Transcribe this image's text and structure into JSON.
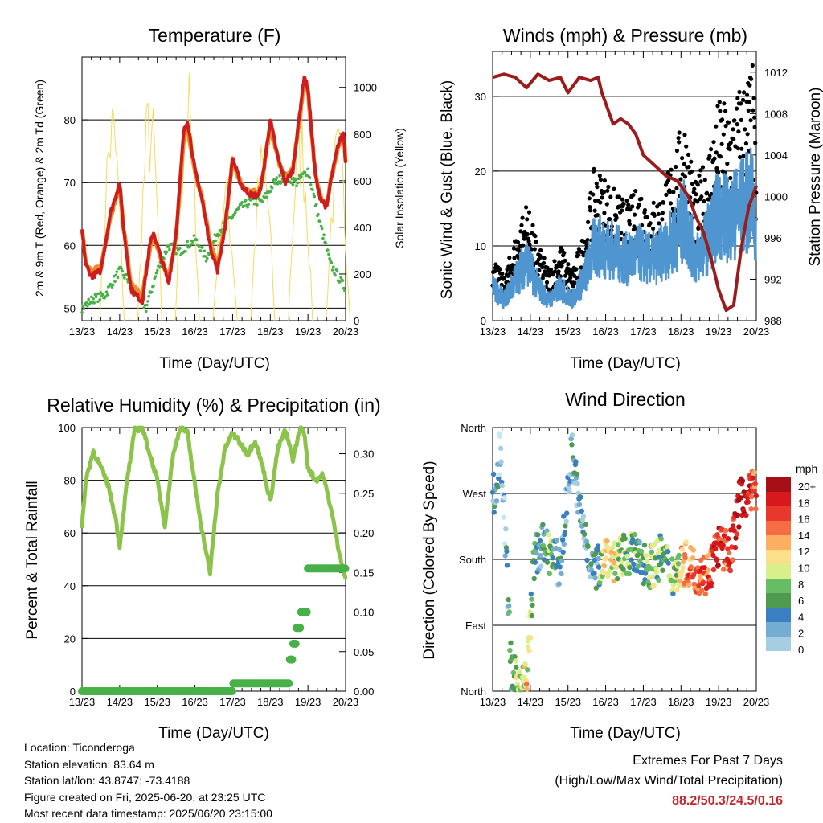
{
  "page": {
    "time_ticks": [
      "13/23",
      "14/23",
      "15/23",
      "16/23",
      "17/23",
      "18/23",
      "19/23",
      "20/23"
    ],
    "time_axis_label": "Time (Day/UTC)"
  },
  "info": {
    "location": "Location: Ticonderoga",
    "elevation": "Station elevation: 83.64 m",
    "latlon": "Station lat/lon: 43.8747; -73.4188",
    "created": "Figure created on Fri, 2025-06-20, at 23:25 UTC",
    "recent": "Most recent data timestamp: 2025/06/20 23:15:00"
  },
  "extremes": {
    "title": "Extremes For Past 7 Days",
    "subtitle": "(High/Low/Max Wind/Total Precipitation)",
    "values": "88.2/50.3/24.5/0.16"
  },
  "legend": {
    "title": "mph",
    "labels": [
      "20+",
      "18",
      "16",
      "14",
      "12",
      "10",
      "8",
      "6",
      "4",
      "2",
      "0"
    ],
    "colors": [
      "#a50f15",
      "#d7191c",
      "#e8382b",
      "#f46d43",
      "#fdae61",
      "#fee08b",
      "#d9ef8b",
      "#66bd63",
      "#4e9a4e",
      "#3a7fc1",
      "#74add1",
      "#a6cee3",
      "#c6e7f5"
    ]
  },
  "chart_data": [
    {
      "id": "temperature",
      "type": "line",
      "title": "Temperature (F)",
      "xlabel": "Time (Day/UTC)",
      "ylabel": "2m & 9m T (Red, Orange) & 2m Td (Green)",
      "y2label": "Solar Insolation (Yellow)",
      "x_day_ticks": [
        "13/23",
        "14/23",
        "15/23",
        "16/23",
        "17/23",
        "18/23",
        "19/23",
        "20/23"
      ],
      "ylim": [
        48,
        90
      ],
      "y_ticks": [
        50,
        60,
        70,
        80
      ],
      "y2lim": [
        0,
        1130
      ],
      "y2_ticks": [
        0,
        200,
        400,
        600,
        800,
        1000
      ],
      "grid": "horizontal",
      "series": [
        {
          "name": "2m T (Red)",
          "color": "#cc1e1e",
          "x": [
            0,
            0.1,
            0.25,
            0.5,
            0.75,
            1.0,
            1.1,
            1.3,
            1.6,
            1.8,
            1.9,
            2.1,
            2.3,
            2.5,
            2.7,
            2.8,
            3.0,
            3.2,
            3.4,
            3.6,
            3.8,
            4.0,
            4.2,
            4.3,
            4.5,
            4.7,
            4.8,
            5.0,
            5.2,
            5.4,
            5.6,
            5.8,
            5.9,
            6.0,
            6.2,
            6.3,
            6.5,
            6.6,
            6.8,
            6.95,
            7.0
          ],
          "y": [
            62.5,
            57,
            55,
            56,
            65,
            70,
            63,
            53,
            51,
            60,
            62,
            58,
            54,
            62,
            78,
            80,
            72,
            67,
            60,
            56,
            63,
            74,
            70,
            69,
            68,
            68,
            71,
            80,
            74,
            70,
            72,
            82,
            87,
            85,
            71,
            68,
            66,
            70,
            76,
            78,
            73
          ]
        },
        {
          "name": "9m T (Orange)",
          "color": "#f08c28",
          "x": [
            0,
            0.1,
            0.25,
            0.5,
            0.75,
            1.0,
            1.1,
            1.3,
            1.6,
            1.8,
            1.9,
            2.1,
            2.3,
            2.5,
            2.7,
            2.8,
            3.0,
            3.2,
            3.4,
            3.6,
            3.8,
            4.0,
            4.2,
            4.3,
            4.5,
            4.7,
            4.8,
            5.0,
            5.2,
            5.4,
            5.6,
            5.8,
            5.9,
            6.0,
            6.2,
            6.3,
            6.5,
            6.6,
            6.8,
            6.95,
            7.0
          ],
          "y": [
            62.8,
            57.5,
            55.8,
            56.5,
            64.5,
            69.5,
            63.2,
            53.8,
            51.8,
            59.5,
            61.5,
            57.8,
            54.8,
            61.5,
            77,
            79,
            71.5,
            67.2,
            60.5,
            56.5,
            63,
            73.5,
            70.2,
            69.3,
            68.4,
            68.5,
            71.2,
            79,
            74,
            70.3,
            72.2,
            81,
            86,
            84.5,
            71.2,
            68.3,
            66.5,
            70.2,
            75.5,
            77.5,
            73.2
          ]
        },
        {
          "name": "2m Td (Green)",
          "color": "#48b048",
          "x": [
            0,
            0.3,
            0.6,
            1.0,
            1.3,
            1.7,
            2.0,
            2.3,
            2.6,
            3.0,
            3.3,
            3.6,
            3.9,
            4.2,
            4.5,
            4.8,
            5.1,
            5.4,
            5.7,
            6.0,
            6.3,
            6.6,
            6.8,
            7.0
          ],
          "y": [
            50,
            51.5,
            52,
            56,
            54,
            50,
            56,
            60,
            59,
            61,
            58,
            62,
            64,
            66,
            67,
            67,
            70,
            71,
            70,
            72,
            64,
            57,
            55,
            53
          ]
        },
        {
          "name": "Solar Insolation (Yellow)",
          "color": "#f3dc5e",
          "axis": "y2",
          "daily_peaks_x": [
            0.8,
            1.8,
            2.8,
            3.8,
            4.8,
            5.8,
            6.8
          ],
          "daily_peaks_y": [
            1020,
            1050,
            1120,
            650,
            820,
            960,
            870
          ]
        }
      ]
    },
    {
      "id": "winds",
      "type": "scatter",
      "title": "Winds (mph) & Pressure (mb)",
      "xlabel": "Time (Day/UTC)",
      "ylabel": "Sonic Wind & Gust (Blue, Black)",
      "y2label": "Station Pressure (Maroon)",
      "x_day_ticks": [
        "13/23",
        "14/23",
        "15/23",
        "16/23",
        "17/23",
        "18/23",
        "19/23",
        "20/23"
      ],
      "ylim": [
        0,
        36
      ],
      "y_ticks": [
        0,
        10,
        20,
        30
      ],
      "y2lim": [
        988,
        1014
      ],
      "y2_ticks": [
        988,
        992,
        996,
        1000,
        1004,
        1008,
        1012
      ],
      "grid": "horizontal",
      "series": [
        {
          "name": "Gust (Black)",
          "color": "#000000",
          "x": [
            0,
            0.3,
            0.6,
            0.9,
            1.2,
            1.5,
            1.8,
            2.1,
            2.4,
            2.7,
            3.0,
            3.3,
            3.6,
            3.9,
            4.2,
            4.5,
            4.8,
            5.1,
            5.4,
            5.7,
            6.0,
            6.3,
            6.6,
            6.9,
            7.0
          ],
          "y": [
            8,
            5,
            10,
            14,
            9,
            6,
            9,
            6,
            10,
            18,
            17,
            15,
            14,
            16,
            14,
            15,
            20,
            24,
            16,
            20,
            26,
            25,
            28,
            30,
            20
          ]
        },
        {
          "name": "Wind (Blue)",
          "color": "#4f96d0",
          "x": [
            0,
            0.3,
            0.6,
            0.9,
            1.2,
            1.5,
            1.8,
            2.1,
            2.4,
            2.7,
            3.0,
            3.3,
            3.6,
            3.9,
            4.2,
            4.5,
            4.8,
            5.1,
            5.4,
            5.7,
            6.0,
            6.3,
            6.6,
            6.9,
            7.0
          ],
          "y": [
            5,
            3,
            6,
            9,
            5,
            3,
            5,
            3,
            6,
            11,
            11,
            10,
            9,
            10,
            9,
            10,
            12,
            15,
            9,
            12,
            16,
            15,
            17,
            18,
            12
          ]
        },
        {
          "name": "Station Pressure (Maroon)",
          "color": "#9b1c1c",
          "axis": "y2",
          "x": [
            0,
            0.3,
            0.6,
            0.9,
            1.2,
            1.5,
            1.8,
            2.0,
            2.3,
            2.6,
            2.8,
            2.9,
            3.0,
            3.2,
            3.4,
            3.6,
            3.8,
            4.0,
            4.3,
            4.6,
            4.9,
            5.2,
            5.4,
            5.6,
            5.8,
            6.0,
            6.2,
            6.4,
            6.6,
            6.8,
            7.0
          ],
          "y": [
            1011.5,
            1011.8,
            1011.5,
            1010.5,
            1011.8,
            1011.2,
            1011.5,
            1010,
            1011.5,
            1011.2,
            1011.5,
            1010,
            1009,
            1007,
            1007.5,
            1007,
            1006,
            1004,
            1003,
            1002,
            1001.5,
            1000,
            998,
            996.5,
            994,
            991,
            989,
            989.5,
            995,
            999,
            1001
          ]
        }
      ]
    },
    {
      "id": "humidity",
      "type": "line",
      "title": "Relative Humidity (%) & Precipitation (in)",
      "xlabel": "Time (Day/UTC)",
      "ylabel": "Percent & Total Rainfall",
      "x_day_ticks": [
        "13/23",
        "14/23",
        "15/23",
        "16/23",
        "17/23",
        "18/23",
        "19/23",
        "20/23"
      ],
      "ylim": [
        0,
        100
      ],
      "y_ticks": [
        0,
        20,
        40,
        60,
        80,
        100
      ],
      "y2lim": [
        0,
        0.333
      ],
      "y2_ticks": [
        0.0,
        0.05,
        0.1,
        0.15,
        0.2,
        0.25,
        0.3
      ],
      "y2_tick_labels": [
        "0.00",
        "0.05",
        "0.10",
        "0.15",
        "0.20",
        "0.25",
        "0.30"
      ],
      "grid": "horizontal",
      "series": [
        {
          "name": "Relative Humidity",
          "color": "#8cc34a",
          "x": [
            0,
            0.1,
            0.3,
            0.5,
            0.7,
            0.9,
            1.0,
            1.2,
            1.4,
            1.6,
            1.8,
            2.0,
            2.2,
            2.4,
            2.6,
            2.8,
            3.0,
            3.2,
            3.4,
            3.6,
            3.8,
            4.0,
            4.2,
            4.4,
            4.6,
            4.8,
            5.0,
            5.2,
            5.4,
            5.6,
            5.8,
            5.9,
            6.0,
            6.2,
            6.4,
            6.6,
            6.8,
            7.0
          ],
          "y": [
            62,
            80,
            91,
            85,
            78,
            65,
            55,
            80,
            99,
            100,
            90,
            80,
            63,
            88,
            100,
            98,
            78,
            60,
            45,
            75,
            92,
            98,
            94,
            90,
            95,
            85,
            72,
            92,
            99,
            88,
            100,
            98,
            85,
            80,
            82,
            70,
            55,
            42
          ]
        },
        {
          "name": "Total Precipitation",
          "color": "#48b048",
          "axis": "y2",
          "x": [
            0,
            3.9,
            4.0,
            5.4,
            5.5,
            5.6,
            5.7,
            5.8,
            5.9,
            6.0,
            7.0
          ],
          "y": [
            0.0,
            0.0,
            0.01,
            0.01,
            0.04,
            0.06,
            0.08,
            0.1,
            0.1,
            0.155,
            0.155
          ]
        }
      ]
    },
    {
      "id": "direction",
      "type": "scatter",
      "title": "Wind Direction",
      "xlabel": "Time (Day/UTC)",
      "ylabel": "Direction (Colored By Speed)",
      "x_day_ticks": [
        "13/23",
        "14/23",
        "15/23",
        "16/23",
        "17/23",
        "18/23",
        "19/23",
        "20/23"
      ],
      "ylim": [
        0,
        360
      ],
      "y_tick_labels": [
        "North",
        "East",
        "South",
        "West",
        "North"
      ],
      "grid": "horizontal",
      "series": [
        {
          "name": "Direction",
          "x": [
            0.1,
            0.2,
            0.3,
            0.5,
            0.9,
            1.1,
            1.3,
            1.5,
            1.8,
            2.1,
            2.3,
            2.5,
            2.7,
            3.0,
            3.3,
            3.6,
            3.9,
            4.2,
            4.5,
            4.8,
            5.1,
            5.4,
            5.7,
            6.0,
            6.3,
            6.6,
            6.8,
            6.95
          ],
          "y": [
            270,
            340,
            250,
            20,
            10,
            180,
            200,
            190,
            170,
            330,
            250,
            200,
            160,
            190,
            175,
            190,
            180,
            170,
            185,
            160,
            175,
            165,
            160,
            200,
            185,
            270,
            265,
            275
          ],
          "speed": [
            4,
            3,
            3,
            6,
            12,
            6,
            4,
            8,
            3,
            4,
            4,
            4,
            3,
            12,
            10,
            8,
            6,
            10,
            6,
            8,
            14,
            16,
            16,
            18,
            16,
            20,
            18,
            16
          ]
        }
      ]
    }
  ]
}
